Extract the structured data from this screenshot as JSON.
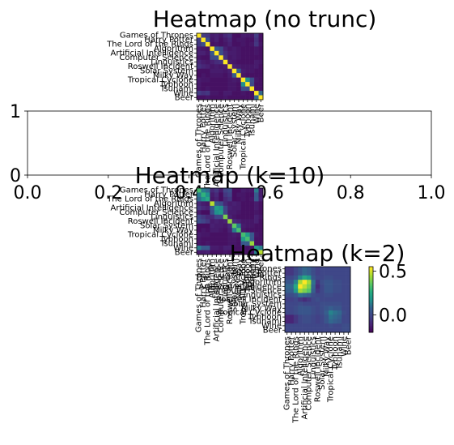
{
  "chart_data": [
    {
      "type": "heatmap",
      "title": "Heatmap (no trunc)",
      "labels": [
        "Games of Thrones",
        "Harry Potter",
        "The Lord of the Rings",
        "Algorithm",
        "Artificial Intelligence",
        "Computer Science",
        "Linguistics",
        "Roswell Incident",
        "Solar System",
        "Milky Way",
        "Tropical Cyclone",
        "Typhoon",
        "Tsunami",
        "Wine",
        "Beer"
      ],
      "matrix": [
        [
          1.0,
          0.22,
          0.2,
          0.1,
          0.12,
          0.08,
          0.14,
          0.18,
          0.06,
          0.05,
          0.1,
          0.09,
          0.08,
          0.22,
          0.06
        ],
        [
          0.22,
          1.0,
          0.3,
          0.08,
          0.12,
          0.06,
          0.1,
          0.14,
          0.06,
          0.08,
          0.08,
          0.06,
          0.06,
          0.18,
          0.06
        ],
        [
          0.2,
          0.3,
          1.0,
          0.06,
          0.08,
          0.06,
          0.08,
          0.12,
          0.06,
          0.06,
          0.08,
          0.06,
          0.08,
          0.2,
          0.08
        ],
        [
          0.1,
          0.08,
          0.06,
          1.0,
          0.34,
          0.28,
          0.12,
          0.08,
          0.1,
          0.08,
          0.06,
          0.06,
          0.06,
          0.08,
          0.06
        ],
        [
          0.12,
          0.12,
          0.08,
          0.34,
          1.0,
          0.3,
          0.16,
          0.1,
          0.1,
          0.08,
          0.06,
          0.06,
          0.06,
          0.08,
          0.06
        ],
        [
          0.08,
          0.06,
          0.06,
          0.28,
          0.3,
          1.0,
          0.18,
          0.08,
          0.1,
          0.08,
          0.06,
          0.06,
          0.06,
          0.06,
          0.06
        ],
        [
          0.14,
          0.1,
          0.08,
          0.12,
          0.16,
          0.18,
          1.0,
          0.1,
          0.08,
          0.06,
          0.06,
          0.06,
          0.06,
          0.1,
          0.08
        ],
        [
          0.18,
          0.14,
          0.12,
          0.08,
          0.1,
          0.08,
          0.1,
          1.0,
          0.12,
          0.1,
          0.08,
          0.08,
          0.08,
          0.1,
          0.06
        ],
        [
          0.06,
          0.06,
          0.06,
          0.1,
          0.1,
          0.1,
          0.08,
          0.12,
          1.0,
          0.36,
          0.1,
          0.08,
          0.08,
          0.06,
          0.06
        ],
        [
          0.05,
          0.08,
          0.06,
          0.08,
          0.08,
          0.08,
          0.06,
          0.1,
          0.36,
          1.0,
          0.08,
          0.06,
          0.06,
          0.06,
          0.06
        ],
        [
          0.1,
          0.08,
          0.08,
          0.06,
          0.06,
          0.06,
          0.06,
          0.08,
          0.1,
          0.08,
          1.0,
          0.5,
          0.3,
          0.08,
          0.06
        ],
        [
          0.09,
          0.06,
          0.06,
          0.06,
          0.06,
          0.06,
          0.06,
          0.08,
          0.08,
          0.06,
          0.5,
          1.0,
          0.28,
          0.06,
          0.06
        ],
        [
          0.08,
          0.06,
          0.08,
          0.06,
          0.06,
          0.06,
          0.06,
          0.08,
          0.08,
          0.06,
          0.3,
          0.28,
          1.0,
          0.06,
          0.06
        ],
        [
          0.22,
          0.18,
          0.2,
          0.08,
          0.08,
          0.06,
          0.1,
          0.1,
          0.06,
          0.06,
          0.08,
          0.06,
          0.06,
          1.0,
          0.4
        ],
        [
          0.06,
          0.06,
          0.08,
          0.06,
          0.06,
          0.06,
          0.08,
          0.06,
          0.06,
          0.06,
          0.06,
          0.06,
          0.06,
          0.4,
          1.0
        ]
      ],
      "vmin": 0.0,
      "vmax": 1.0
    },
    {
      "type": "line",
      "title": "",
      "xlim": [
        0.0,
        1.0
      ],
      "ylim": [
        0,
        1
      ],
      "xticks": [
        "0.0",
        "0.2",
        "0.4",
        "0.6",
        "0.8",
        "1.0"
      ],
      "yticks": [
        "0",
        "1"
      ]
    },
    {
      "type": "heatmap",
      "title": "Heatmap (k=10)",
      "labels": [
        "Games of Thrones",
        "Harry Potter",
        "The Lord of the Rings",
        "Algorithm",
        "Artificial Intelligence",
        "Computer Science",
        "Linguistics",
        "Roswell Incident",
        "Solar System",
        "Milky Way",
        "Tropical Cyclone",
        "Typhoon",
        "Tsunami",
        "Wine",
        "Beer"
      ],
      "matrix": [
        [
          0.7,
          0.45,
          0.4,
          0.15,
          0.2,
          0.1,
          0.25,
          0.3,
          0.05,
          0.05,
          0.1,
          0.08,
          0.08,
          0.45,
          0.1
        ],
        [
          0.45,
          0.65,
          0.5,
          0.1,
          0.15,
          0.05,
          0.2,
          0.25,
          0.05,
          0.08,
          0.08,
          0.06,
          0.06,
          0.35,
          0.1
        ],
        [
          0.4,
          0.5,
          0.6,
          0.08,
          0.12,
          0.05,
          0.15,
          0.2,
          0.05,
          0.06,
          0.08,
          0.06,
          0.08,
          0.35,
          0.12
        ],
        [
          0.15,
          0.1,
          0.08,
          0.9,
          0.35,
          0.3,
          0.15,
          0.1,
          0.12,
          0.1,
          0.06,
          0.06,
          0.06,
          0.1,
          0.06
        ],
        [
          0.2,
          0.15,
          0.12,
          0.35,
          0.55,
          0.5,
          0.25,
          0.12,
          0.1,
          0.1,
          0.06,
          0.06,
          0.06,
          0.1,
          0.06
        ],
        [
          0.1,
          0.05,
          0.05,
          0.3,
          0.5,
          0.55,
          0.25,
          0.1,
          0.1,
          0.08,
          0.06,
          0.06,
          0.06,
          0.08,
          0.06
        ],
        [
          0.25,
          0.2,
          0.15,
          0.15,
          0.25,
          0.25,
          0.8,
          0.12,
          0.08,
          0.06,
          0.06,
          0.06,
          0.06,
          0.12,
          0.08
        ],
        [
          0.3,
          0.25,
          0.2,
          0.1,
          0.12,
          0.1,
          0.12,
          0.85,
          0.15,
          0.12,
          0.08,
          0.08,
          0.08,
          0.12,
          0.06
        ],
        [
          0.05,
          0.05,
          0.05,
          0.12,
          0.1,
          0.1,
          0.08,
          0.15,
          0.75,
          0.45,
          0.1,
          0.08,
          0.08,
          0.06,
          0.06
        ],
        [
          0.05,
          0.08,
          0.06,
          0.1,
          0.1,
          0.08,
          0.06,
          0.12,
          0.45,
          0.7,
          0.08,
          0.06,
          0.06,
          0.06,
          0.06
        ],
        [
          0.1,
          0.08,
          0.08,
          0.06,
          0.06,
          0.06,
          0.06,
          0.08,
          0.1,
          0.08,
          0.7,
          0.55,
          0.35,
          0.08,
          0.06
        ],
        [
          0.08,
          0.06,
          0.06,
          0.06,
          0.06,
          0.06,
          0.06,
          0.08,
          0.08,
          0.06,
          0.55,
          0.7,
          0.35,
          0.06,
          0.06
        ],
        [
          0.08,
          0.06,
          0.08,
          0.06,
          0.06,
          0.06,
          0.06,
          0.08,
          0.08,
          0.06,
          0.35,
          0.35,
          0.85,
          0.06,
          0.06
        ],
        [
          0.45,
          0.35,
          0.35,
          0.1,
          0.1,
          0.08,
          0.12,
          0.12,
          0.06,
          0.06,
          0.08,
          0.06,
          0.06,
          0.55,
          0.45
        ],
        [
          0.1,
          0.1,
          0.12,
          0.06,
          0.06,
          0.06,
          0.08,
          0.06,
          0.06,
          0.06,
          0.06,
          0.06,
          0.06,
          0.45,
          0.9
        ]
      ],
      "vmin": 0.0,
      "vmax": 1.0
    },
    {
      "type": "heatmap",
      "title": "Heatmap (k=2)",
      "labels": [
        "Games of Thrones",
        "Harry Potter",
        "The Lord of the Rings",
        "Algorithm",
        "Artificial Intelligence",
        "Computer Science",
        "Linguistics",
        "Roswell Incident",
        "Solar System",
        "Milky Way",
        "Tropical Cyclone",
        "Typhoon",
        "Tsunami",
        "Wine",
        "Beer"
      ],
      "matrix": [
        [
          -0.05,
          -0.05,
          0.0,
          0.05,
          0.1,
          0.08,
          0.02,
          -0.02,
          0.0,
          0.0,
          0.0,
          0.0,
          0.0,
          0.0,
          0.0
        ],
        [
          -0.05,
          -0.05,
          0.0,
          0.05,
          0.1,
          0.08,
          0.02,
          -0.02,
          0.0,
          0.0,
          0.0,
          0.0,
          0.0,
          0.0,
          0.0
        ],
        [
          0.0,
          0.0,
          0.05,
          0.15,
          0.25,
          0.2,
          0.05,
          0.0,
          0.0,
          0.02,
          0.02,
          0.0,
          0.0,
          0.0,
          0.0
        ],
        [
          0.05,
          0.05,
          0.15,
          0.45,
          0.55,
          0.45,
          0.12,
          -0.05,
          0.02,
          0.05,
          0.05,
          0.02,
          0.02,
          0.0,
          0.0
        ],
        [
          0.1,
          0.1,
          0.25,
          0.55,
          0.48,
          0.4,
          0.1,
          -0.08,
          0.0,
          0.05,
          0.05,
          0.02,
          0.02,
          0.0,
          0.0
        ],
        [
          0.08,
          0.08,
          0.2,
          0.45,
          0.4,
          0.35,
          0.08,
          -0.05,
          0.0,
          0.05,
          0.05,
          0.02,
          0.02,
          0.0,
          0.0
        ],
        [
          0.02,
          0.02,
          0.05,
          0.12,
          0.1,
          0.08,
          0.02,
          0.0,
          0.0,
          0.02,
          0.02,
          0.0,
          0.0,
          0.0,
          0.0
        ],
        [
          -0.02,
          -0.02,
          0.0,
          -0.05,
          -0.08,
          -0.05,
          0.0,
          0.02,
          0.0,
          0.0,
          0.0,
          0.0,
          0.0,
          0.0,
          0.0
        ],
        [
          0.0,
          0.0,
          0.0,
          0.02,
          0.0,
          0.0,
          0.0,
          0.0,
          0.02,
          0.02,
          0.02,
          0.02,
          0.02,
          0.0,
          0.0
        ],
        [
          0.0,
          0.0,
          0.02,
          0.05,
          0.05,
          0.05,
          0.02,
          0.0,
          0.02,
          0.05,
          0.08,
          0.05,
          0.05,
          0.0,
          0.0
        ],
        [
          0.0,
          0.0,
          0.02,
          0.05,
          0.05,
          0.05,
          0.02,
          0.0,
          0.02,
          0.08,
          0.15,
          0.12,
          0.1,
          0.02,
          0.0
        ],
        [
          -0.1,
          -0.1,
          -0.05,
          0.0,
          0.02,
          0.02,
          0.0,
          -0.02,
          0.0,
          0.05,
          0.12,
          0.1,
          0.08,
          0.0,
          0.0
        ],
        [
          -0.1,
          -0.1,
          -0.05,
          0.0,
          0.02,
          0.02,
          0.0,
          -0.02,
          0.0,
          0.05,
          0.1,
          0.08,
          0.06,
          0.0,
          0.0
        ],
        [
          0.0,
          0.0,
          0.0,
          0.0,
          0.0,
          0.0,
          0.0,
          0.0,
          0.0,
          0.0,
          0.02,
          0.0,
          0.0,
          0.02,
          0.02
        ],
        [
          0.0,
          0.0,
          0.0,
          0.0,
          0.0,
          0.0,
          0.0,
          0.0,
          0.0,
          0.0,
          0.0,
          0.0,
          0.0,
          0.02,
          0.02
        ]
      ],
      "vmin": -0.2,
      "vmax": 0.55,
      "colorbar": {
        "ticks": [
          "0.5",
          "0.0"
        ],
        "tick_values": [
          0.5,
          0.0
        ]
      }
    }
  ]
}
